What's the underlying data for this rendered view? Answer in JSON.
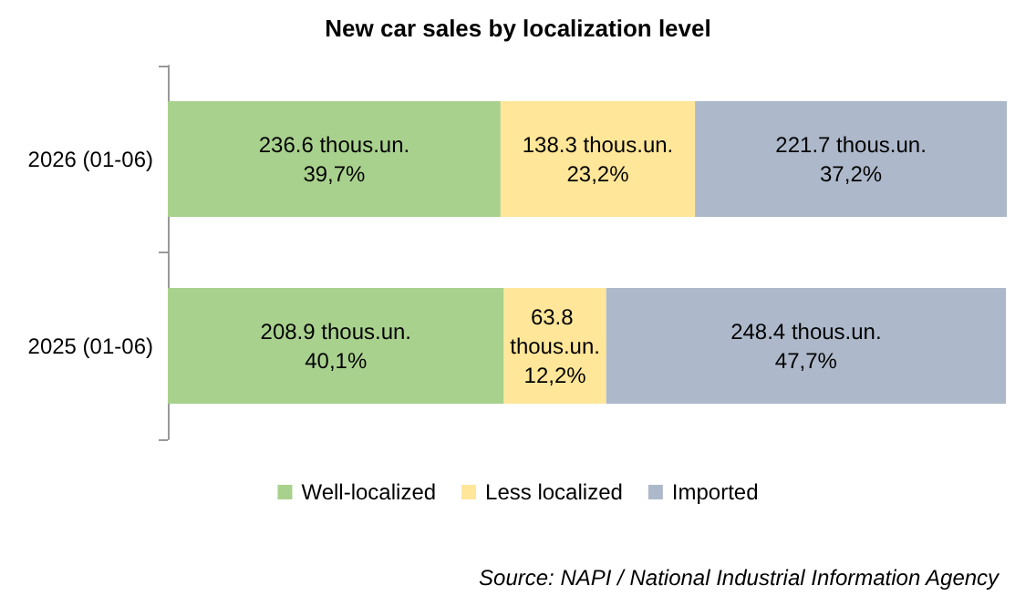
{
  "chart_data": {
    "type": "bar",
    "orientation": "horizontal",
    "stacked": true,
    "title": "New car sales by localization level",
    "categories": [
      "2026 (01-06)",
      "2025 (01-06)"
    ],
    "series": [
      {
        "name": "Well-localized",
        "color": "#a9d18e",
        "values": [
          39.7,
          40.1
        ],
        "value_labels": [
          "236.6 thous.un.\n39,7%",
          "208.9 thous.un.\n40,1%"
        ]
      },
      {
        "name": "Less localized",
        "color": "#ffe699",
        "values": [
          23.2,
          12.2
        ],
        "value_labels": [
          "138.3 thous.un.\n23,2%",
          "63.8 thous.un.\n12,2%"
        ]
      },
      {
        "name": "Imported",
        "color": "#adb9ca",
        "values": [
          37.2,
          47.7
        ],
        "value_labels": [
          "221.7 thous.un.\n37,2%",
          "248.4 thous.un.\n47,7%"
        ]
      }
    ],
    "xlim": [
      0,
      100.1
    ],
    "tick_labels": "y",
    "grid": false,
    "legend": "bottom",
    "annotations": [
      "Source: NAPI / National Industrial Information Agency"
    ]
  }
}
